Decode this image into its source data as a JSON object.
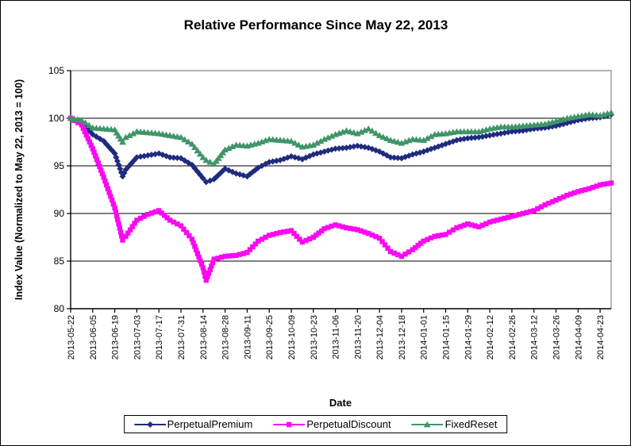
{
  "title": "Relative Performance Since May 22, 2013",
  "colors": {
    "axis": "#000000",
    "gridline": "#000000",
    "plot_border": "#888888",
    "background": "#ffffff",
    "text": "#000000"
  },
  "chart_data": {
    "type": "line",
    "title": "Relative Performance Since May 22, 2013",
    "xlabel": "Date",
    "ylabel": "Index Value (Normalized to May 22, 2013 = 100)",
    "ylim": [
      80,
      105
    ],
    "yticks": [
      80,
      85,
      90,
      95,
      100,
      105
    ],
    "grid": true,
    "legend_position": "bottom",
    "xticks": [
      "2013-05-22",
      "2013-06-05",
      "2013-06-19",
      "2013-07-03",
      "2013-07-17",
      "2013-07-31",
      "2013-08-14",
      "2013-08-28",
      "2013-09-11",
      "2013-09-25",
      "2013-10-09",
      "2013-10-23",
      "2013-11-06",
      "2013-11-20",
      "2013-12-04",
      "2013-12-18",
      "2014-01-01",
      "2014-01-15",
      "2014-01-29",
      "2014-02-12",
      "2014-02-26",
      "2014-03-12",
      "2014-03-26",
      "2014-04-09",
      "2014-04-23"
    ],
    "x": [
      "2013-05-22",
      "2013-05-29",
      "2013-06-05",
      "2013-06-12",
      "2013-06-19",
      "2013-06-24",
      "2013-06-26",
      "2013-07-03",
      "2013-07-10",
      "2013-07-17",
      "2013-07-24",
      "2013-07-31",
      "2013-08-07",
      "2013-08-14",
      "2013-08-16",
      "2013-08-21",
      "2013-08-28",
      "2013-09-04",
      "2013-09-11",
      "2013-09-18",
      "2013-09-25",
      "2013-10-02",
      "2013-10-09",
      "2013-10-16",
      "2013-10-23",
      "2013-10-30",
      "2013-11-06",
      "2013-11-13",
      "2013-11-20",
      "2013-11-27",
      "2013-12-04",
      "2013-12-11",
      "2013-12-18",
      "2013-12-25",
      "2014-01-01",
      "2014-01-08",
      "2014-01-15",
      "2014-01-22",
      "2014-01-29",
      "2014-02-05",
      "2014-02-12",
      "2014-02-19",
      "2014-02-26",
      "2014-03-05",
      "2014-03-12",
      "2014-03-19",
      "2014-03-26",
      "2014-04-02",
      "2014-04-09",
      "2014-04-16",
      "2014-04-23",
      "2014-04-30"
    ],
    "series": [
      {
        "name": "PerpetualPremium",
        "color": "#1f2b7e",
        "marker": "diamond",
        "values": [
          100.0,
          99.6,
          98.3,
          97.6,
          96.3,
          93.9,
          94.6,
          95.9,
          96.1,
          96.3,
          95.9,
          95.8,
          95.1,
          93.7,
          93.3,
          93.6,
          94.7,
          94.2,
          93.9,
          94.8,
          95.4,
          95.6,
          96.0,
          95.7,
          96.2,
          96.5,
          96.8,
          96.9,
          97.1,
          96.9,
          96.5,
          95.9,
          95.8,
          96.2,
          96.5,
          96.9,
          97.3,
          97.7,
          97.9,
          98.0,
          98.2,
          98.4,
          98.6,
          98.7,
          98.9,
          99.0,
          99.2,
          99.5,
          99.8,
          100.0,
          100.1,
          100.4
        ]
      },
      {
        "name": "PerpetualDiscount",
        "color": "#fa08f2",
        "marker": "square",
        "values": [
          100.0,
          99.3,
          96.8,
          93.8,
          90.6,
          87.2,
          87.6,
          89.3,
          89.9,
          90.3,
          89.3,
          88.7,
          87.3,
          84.3,
          83.0,
          85.2,
          85.5,
          85.6,
          85.9,
          87.1,
          87.7,
          88.0,
          88.2,
          87.0,
          87.5,
          88.4,
          88.8,
          88.5,
          88.3,
          87.9,
          87.4,
          86.0,
          85.5,
          86.2,
          87.1,
          87.6,
          87.8,
          88.5,
          88.9,
          88.6,
          89.1,
          89.4,
          89.7,
          90.0,
          90.3,
          90.9,
          91.4,
          91.9,
          92.3,
          92.6,
          93.0,
          93.2
        ]
      },
      {
        "name": "FixedReset",
        "color": "#3f9569",
        "marker": "triangle",
        "values": [
          100.0,
          99.8,
          99.0,
          98.9,
          98.8,
          97.5,
          98.0,
          98.6,
          98.5,
          98.4,
          98.2,
          98.0,
          97.3,
          95.9,
          95.6,
          95.2,
          96.7,
          97.2,
          97.1,
          97.4,
          97.8,
          97.7,
          97.6,
          97.0,
          97.2,
          97.8,
          98.3,
          98.7,
          98.4,
          98.9,
          98.2,
          97.7,
          97.4,
          97.8,
          97.7,
          98.3,
          98.4,
          98.6,
          98.6,
          98.6,
          98.9,
          99.1,
          99.1,
          99.2,
          99.3,
          99.4,
          99.7,
          100.0,
          100.2,
          100.4,
          100.3,
          100.6
        ]
      }
    ]
  }
}
